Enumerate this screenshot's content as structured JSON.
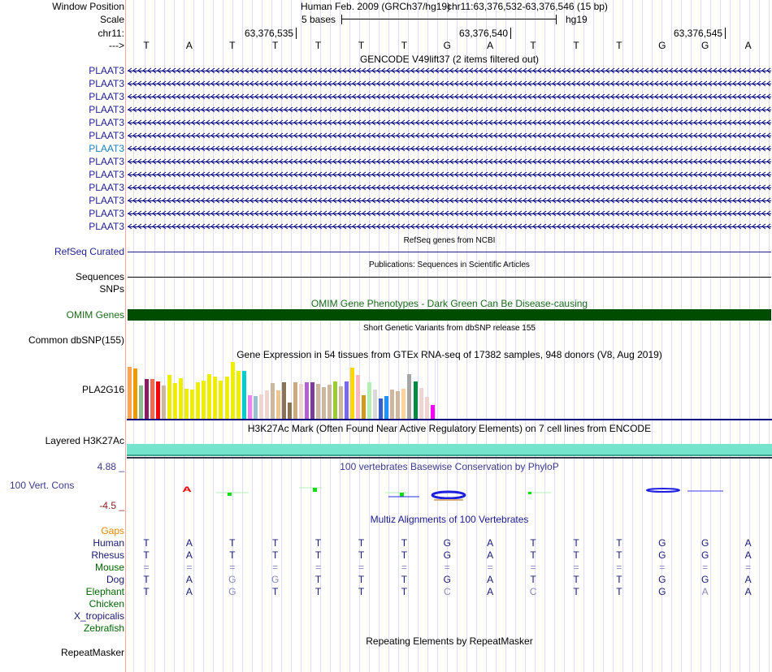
{
  "header": {
    "window_position_label": "Window Position",
    "assembly": "Human Feb. 2009 (GRCh37/hg19)",
    "position": "chr11:63,376,532-63,376,546 (15 bp)",
    "scale_label": "Scale",
    "scale_text": "5 bases",
    "scale_db": "hg19",
    "chrom_label": "chr11:",
    "arrow_label": "--->",
    "ticks": [
      "63,376,535",
      "63,376,540",
      "63,376,545"
    ]
  },
  "bases": [
    "T",
    "A",
    "T",
    "T",
    "T",
    "T",
    "T",
    "G",
    "A",
    "T",
    "T",
    "T",
    "G",
    "G",
    "A"
  ],
  "gencode": {
    "title": "GENCODE V49lift37 (2 items filtered out)",
    "items": [
      "PLAAT3",
      "PLAAT3",
      "PLAAT3",
      "PLAAT3",
      "PLAAT3",
      "PLAAT3",
      "PLAAT3",
      "PLAAT3",
      "PLAAT3",
      "PLAAT3",
      "PLAAT3",
      "PLAAT3",
      "PLAAT3"
    ],
    "highlighted_index": 6
  },
  "refseq": {
    "title": "RefSeq genes from NCBI",
    "label": "RefSeq Curated"
  },
  "pubs": {
    "title": "Publications: Sequences in Scientific Articles",
    "label1": "Sequences",
    "label2": "SNPs"
  },
  "omim": {
    "title": "OMIM Gene Phenotypes - Dark Green Can Be Disease-causing",
    "label": "OMIM Genes",
    "color": "#004d00"
  },
  "dbsnp": {
    "title": "Short Genetic Variants from dbSNP release 155",
    "label": "Common dbSNP(155)"
  },
  "gtex": {
    "title": "Gene Expression in 54 tissues from GTEx RNA-seq of 17382 samples, 948 donors (V8, Aug 2019)",
    "label": "PLA2G16",
    "values": [
      195,
      189,
      126,
      150,
      150,
      141,
      126,
      165,
      135,
      153,
      114,
      111,
      138,
      144,
      168,
      159,
      144,
      159,
      213,
      180,
      180,
      90,
      87,
      93,
      108,
      135,
      108,
      138,
      60,
      138,
      132,
      138,
      138,
      132,
      120,
      129,
      141,
      123,
      141,
      192,
      165,
      90,
      138,
      111,
      75,
      87,
      111,
      105,
      114,
      168,
      141,
      117,
      84,
      51
    ],
    "colors": [
      "#FFA54F",
      "#EE9A00",
      "#8FBC8F",
      "#8B1C62",
      "#EE6A50",
      "#FF0000",
      "#CDB79E",
      "#EEEE00",
      "#EEEE00",
      "#EEEE00",
      "#EEEE00",
      "#EEEE00",
      "#EEEE00",
      "#EEEE00",
      "#EEEE00",
      "#EEEE00",
      "#EEEE00",
      "#EEEE00",
      "#EEEE00",
      "#EEEE00",
      "#00CDCD",
      "#EE82EE",
      "#9AC0CD",
      "#EED5D2",
      "#EED5D2",
      "#CDB79E",
      "#EEC591",
      "#8B7355",
      "#8B7355",
      "#CDAA7D",
      "#EED5D2",
      "#B460D0",
      "#7D3C98",
      "#CDB79E",
      "#CDB79E",
      "#CDB79E",
      "#9ACD32",
      "#CDB79E",
      "#7B68EE",
      "#FFD700",
      "#FFB6C1",
      "#CD9B1D",
      "#B4EEB4",
      "#D9D9D9",
      "#3A5FCD",
      "#1E90FF",
      "#CDB79E",
      "#CDB79E",
      "#FFD39B",
      "#A6A6A6",
      "#008B45",
      "#EED5D2",
      "#EED5D2",
      "#FF00FF"
    ]
  },
  "h3k27ac": {
    "title": "H3K27Ac Mark (Often Found Near Active Regulatory Elements) on 7 cell lines from ENCODE",
    "label": "Layered H3K27Ac"
  },
  "phylop": {
    "title": "100 vertebrates Basewise Conservation by PhyloP",
    "label": "100 Vert. Cons",
    "max": "4.88 _",
    "min": "-4.5 _"
  },
  "multiz": {
    "title": "Multiz Alignments of 100 Vertebrates",
    "gaps_label": "Gaps",
    "species": [
      {
        "name": "Human",
        "color": "#191970",
        "seq": [
          "T",
          "A",
          "T",
          "T",
          "T",
          "T",
          "T",
          "G",
          "A",
          "T",
          "T",
          "T",
          "G",
          "G",
          "A"
        ]
      },
      {
        "name": "Rhesus",
        "color": "#191970",
        "seq": [
          "T",
          "A",
          "T",
          "T",
          "T",
          "T",
          "T",
          "G",
          "A",
          "T",
          "T",
          "T",
          "G",
          "G",
          "A"
        ]
      },
      {
        "name": "Mouse",
        "color": "#006400",
        "seq": [
          "=",
          "=",
          "=",
          "=",
          "=",
          "=",
          "=",
          "=",
          "=",
          "=",
          "=",
          "=",
          "=",
          "=",
          "="
        ]
      },
      {
        "name": "Dog",
        "color": "#191970",
        "seq": [
          "T",
          "A",
          "G",
          "G",
          "T",
          "T",
          "T",
          "G",
          "A",
          "T",
          "T",
          "T",
          "G",
          "G",
          "A"
        ]
      },
      {
        "name": "Elephant",
        "color": "#006400",
        "seq": [
          "T",
          "A",
          "G",
          "T",
          "T",
          "T",
          "T",
          "C",
          "A",
          "C",
          "T",
          "T",
          "G",
          "A",
          "A"
        ]
      },
      {
        "name": "Chicken",
        "color": "#006400",
        "seq": []
      },
      {
        "name": "X_tropicalis",
        "color": "#191970",
        "seq": []
      },
      {
        "name": "Zebrafish",
        "color": "#006400",
        "seq": []
      }
    ]
  },
  "repeatmasker": {
    "title": "Repeating Elements by RepeatMasker",
    "label": "RepeatMasker"
  }
}
